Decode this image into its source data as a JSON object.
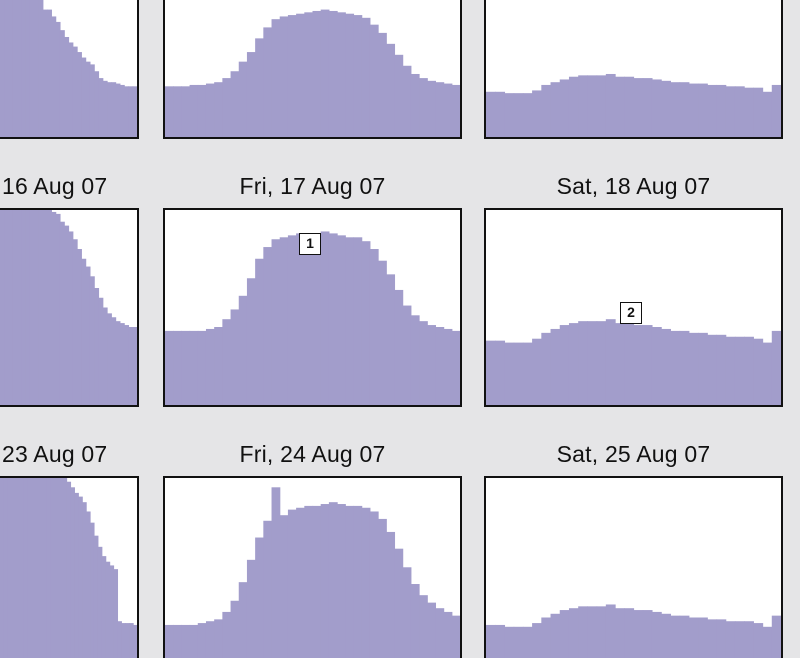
{
  "chart_data": {
    "type": "area",
    "fill_color": "#a29dcb",
    "background_color": "#e5e5e7",
    "panels": [
      {
        "key": "r0c0",
        "label": "",
        "values": [
          100,
          100,
          100,
          100,
          100,
          100,
          100,
          100,
          100,
          100,
          93,
          93,
          88,
          84,
          78,
          73,
          69,
          66,
          62,
          58,
          55,
          53,
          48,
          43,
          41,
          40,
          40,
          39,
          38,
          37,
          37,
          37
        ]
      },
      {
        "key": "r0c1",
        "label": "",
        "values": [
          37,
          37,
          37,
          38,
          38,
          39,
          40,
          43,
          48,
          55,
          62,
          72,
          80,
          86,
          88,
          89,
          90,
          91,
          92,
          93,
          92,
          91,
          90,
          89,
          87,
          82,
          76,
          68,
          60,
          52,
          46,
          43,
          41,
          40,
          39,
          38
        ]
      },
      {
        "key": "r0c2",
        "label": "",
        "values": [
          33,
          33,
          32,
          32,
          32,
          34,
          38,
          40,
          42,
          44,
          45,
          45,
          45,
          46,
          44,
          44,
          43,
          43,
          42,
          41,
          40,
          40,
          39,
          39,
          38,
          38,
          37,
          37,
          36,
          36,
          33,
          38
        ]
      },
      {
        "key": "r1c0",
        "label": "16 Aug 07",
        "values": [
          100,
          100,
          100,
          100,
          100,
          100,
          100,
          100,
          100,
          100,
          100,
          100,
          99,
          98,
          94,
          92,
          89,
          85,
          80,
          75,
          71,
          66,
          60,
          55,
          50,
          47,
          45,
          43,
          42,
          41,
          40,
          40
        ]
      },
      {
        "key": "r1c1",
        "label": "Fri, 17 Aug 07",
        "values": [
          38,
          38,
          38,
          38,
          38,
          39,
          40,
          44,
          49,
          56,
          65,
          75,
          81,
          85,
          86,
          87,
          88,
          88,
          88,
          89,
          88,
          87,
          86,
          86,
          84,
          80,
          74,
          67,
          59,
          51,
          46,
          43,
          41,
          40,
          39,
          38
        ]
      },
      {
        "key": "r1c2",
        "label": "Sat, 18 Aug 07",
        "values": [
          33,
          33,
          32,
          32,
          32,
          34,
          37,
          39,
          41,
          42,
          43,
          43,
          43,
          44,
          42,
          42,
          41,
          41,
          40,
          39,
          38,
          38,
          37,
          37,
          36,
          36,
          35,
          35,
          35,
          34,
          32,
          38
        ]
      },
      {
        "key": "r2c0",
        "label": "23 Aug 07",
        "values": [
          100,
          100,
          100,
          100,
          100,
          100,
          100,
          100,
          100,
          100,
          100,
          100,
          100,
          100,
          100,
          100,
          100,
          98,
          95,
          92,
          90,
          87,
          82,
          76,
          69,
          63,
          58,
          55,
          53,
          51,
          23,
          22,
          22,
          22,
          21
        ]
      },
      {
        "key": "r2c1",
        "label": "Fri, 24 Aug 07",
        "values": [
          21,
          21,
          21,
          21,
          22,
          23,
          24,
          28,
          34,
          44,
          56,
          68,
          77,
          95,
          80,
          83,
          84,
          85,
          85,
          86,
          87,
          86,
          85,
          85,
          84,
          82,
          78,
          71,
          62,
          52,
          43,
          37,
          33,
          30,
          28,
          26
        ]
      },
      {
        "key": "r2c2",
        "label": "Sat, 25 Aug 07",
        "values": [
          21,
          21,
          20,
          20,
          20,
          22,
          25,
          27,
          29,
          30,
          31,
          31,
          31,
          32,
          30,
          30,
          29,
          29,
          28,
          27,
          26,
          26,
          25,
          25,
          24,
          24,
          23,
          23,
          23,
          22,
          20,
          26
        ]
      }
    ],
    "markers": [
      {
        "panel": "r1c1",
        "text": "1"
      },
      {
        "panel": "r1c2",
        "text": "2"
      }
    ]
  }
}
